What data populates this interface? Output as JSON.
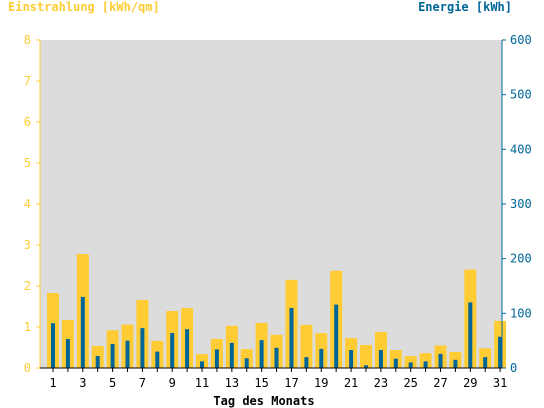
{
  "colors": {
    "plot_bg": "#dcdcdc",
    "left_axis": "#ffcc33",
    "right_axis": "#006699",
    "text_dark": "#000000"
  },
  "chart_data": {
    "type": "bar",
    "xlabel": "Tag des Monats",
    "left_axis": {
      "label": "Einstrahlung [kWh/qm]",
      "ylim": [
        0,
        8
      ],
      "ticks": [
        0,
        1,
        2,
        3,
        4,
        5,
        6,
        7,
        8
      ]
    },
    "right_axis": {
      "label": "Energie [kWh]",
      "ylim": [
        0,
        600
      ],
      "ticks": [
        0,
        100,
        200,
        300,
        400,
        500,
        600
      ]
    },
    "x_tick_labels": [
      "1",
      "3",
      "5",
      "7",
      "9",
      "11",
      "13",
      "15",
      "17",
      "19",
      "21",
      "23",
      "25",
      "27",
      "29",
      "31"
    ],
    "days": [
      1,
      2,
      3,
      4,
      5,
      6,
      7,
      8,
      9,
      10,
      11,
      12,
      13,
      14,
      15,
      16,
      17,
      18,
      19,
      20,
      21,
      22,
      23,
      24,
      25,
      26,
      27,
      28,
      29,
      30,
      31
    ],
    "series": [
      {
        "name": "Einstrahlung [kWh/qm]",
        "axis": "left",
        "values": [
          1.83,
          1.17,
          2.78,
          0.54,
          0.92,
          1.06,
          1.66,
          0.66,
          1.39,
          1.46,
          0.34,
          0.71,
          1.03,
          0.46,
          1.1,
          0.81,
          2.15,
          1.05,
          0.85,
          2.37,
          0.73,
          0.56,
          0.88,
          0.44,
          0.29,
          0.36,
          0.55,
          0.39,
          2.4,
          0.48,
          1.15
        ]
      },
      {
        "name": "Energie [kWh]",
        "axis": "right",
        "values": [
          82,
          53,
          130,
          22,
          44,
          50,
          73,
          30,
          64,
          71,
          12,
          34,
          46,
          18,
          51,
          37,
          110,
          20,
          35,
          116,
          33,
          5,
          33,
          17,
          10,
          12,
          26,
          15,
          120,
          20,
          57
        ]
      }
    ],
    "grid": false
  }
}
